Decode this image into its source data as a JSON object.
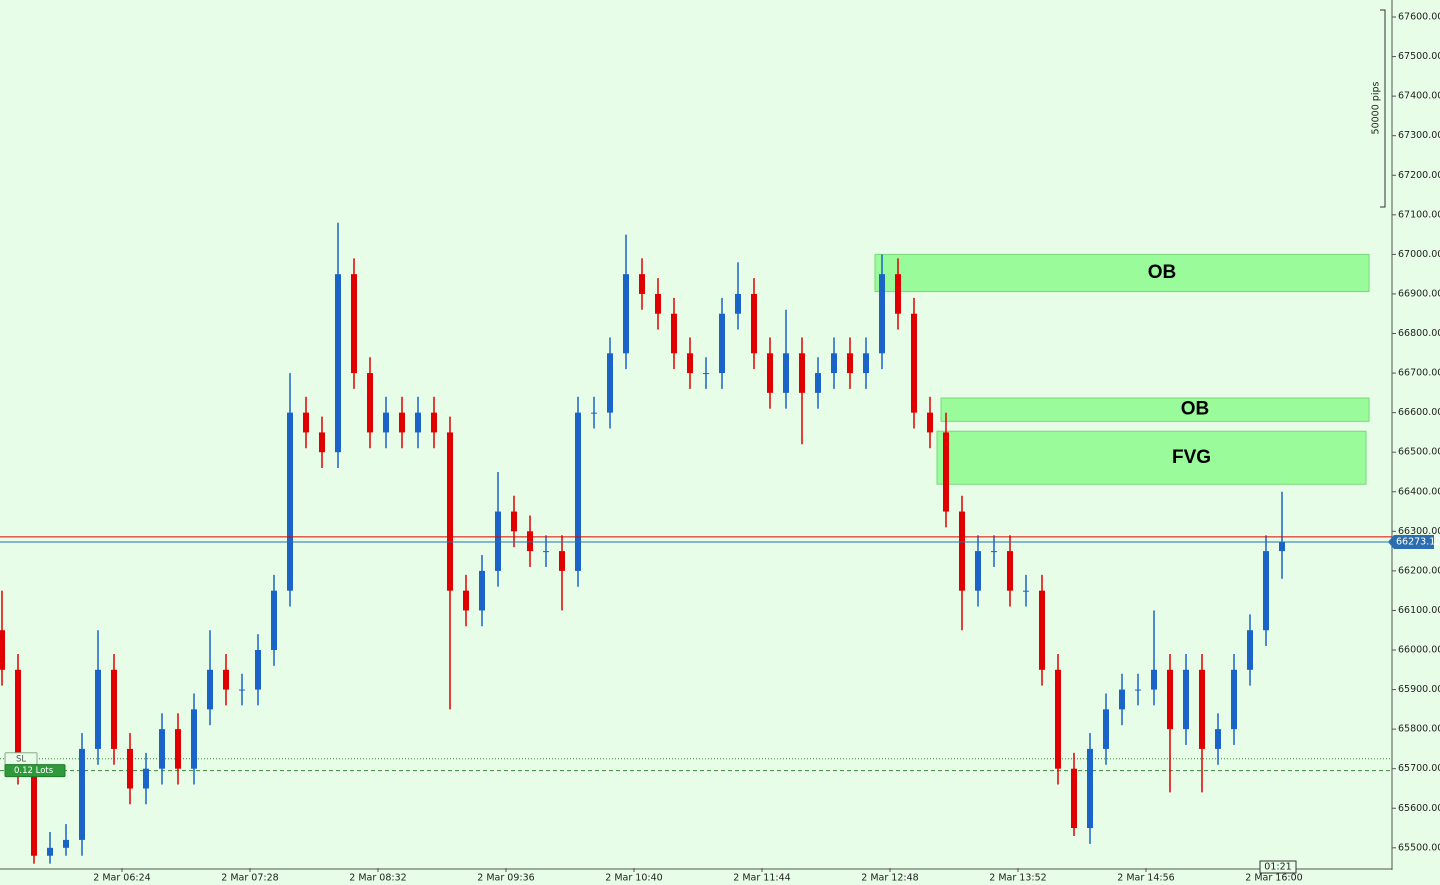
{
  "chart_data": {
    "type": "candlestick",
    "x": [
      324,
      332,
      340,
      348,
      356,
      364,
      372,
      380,
      388,
      396,
      404,
      412,
      420,
      428,
      436,
      444,
      452,
      460,
      468,
      476,
      484,
      492,
      500,
      508,
      516,
      524,
      532,
      540,
      548,
      556,
      564,
      572,
      580,
      588,
      596,
      604,
      612,
      620,
      628,
      636,
      644,
      652,
      660,
      668,
      676,
      684,
      692,
      700,
      708,
      716,
      724,
      732,
      740,
      748,
      756,
      764,
      772,
      780,
      788,
      796,
      804,
      812,
      820,
      828,
      836,
      844,
      852,
      860,
      868,
      876,
      884,
      892,
      900,
      908,
      916,
      924,
      932,
      940,
      948,
      956,
      964
    ],
    "open": [
      66050,
      65950,
      65700,
      65480,
      65500,
      65520,
      65750,
      65950,
      65750,
      65650,
      65700,
      65800,
      65700,
      65850,
      65950,
      65900,
      65900,
      66000,
      66150,
      66600,
      66550,
      66500,
      66950,
      66700,
      66550,
      66600,
      66550,
      66600,
      66550,
      66150,
      66100,
      66200,
      66350,
      66300,
      66250,
      66250,
      66200,
      66600,
      66600,
      66750,
      66950,
      66900,
      66850,
      66750,
      66700,
      66700,
      66850,
      66900,
      66750,
      66650,
      66750,
      66650,
      66700,
      66750,
      66700,
      66750,
      66950,
      66850,
      66600,
      66550,
      66350,
      66150,
      66250,
      66250,
      66150,
      66150,
      65950,
      65700,
      65550,
      65750,
      65850,
      65900,
      65900,
      65950,
      65800,
      65950,
      65750,
      65800,
      65950,
      66050,
      66250
    ],
    "high": [
      66150,
      65990,
      65740,
      65540,
      65560,
      65790,
      66050,
      65990,
      65790,
      65740,
      65840,
      65840,
      65890,
      66050,
      65990,
      65940,
      66040,
      66190,
      66700,
      66640,
      66590,
      67080,
      66990,
      66740,
      66640,
      66640,
      66640,
      66640,
      66590,
      66190,
      66240,
      66450,
      66390,
      66340,
      66290,
      66290,
      66640,
      66640,
      66790,
      67050,
      66990,
      66940,
      66890,
      66790,
      66740,
      66890,
      66980,
      66940,
      66790,
      66860,
      66790,
      66740,
      66790,
      66790,
      66790,
      67000,
      66990,
      66890,
      66640,
      66600,
      66390,
      66290,
      66290,
      66290,
      66190,
      66190,
      65990,
      65740,
      65790,
      65890,
      65940,
      65940,
      66100,
      65990,
      65990,
      65990,
      65840,
      65990,
      66090,
      66290,
      66400
    ],
    "low": [
      65910,
      65660,
      65460,
      65460,
      65480,
      65480,
      65710,
      65710,
      65610,
      65610,
      65660,
      65660,
      65660,
      65810,
      65860,
      65860,
      65860,
      65960,
      66110,
      66510,
      66460,
      66460,
      66660,
      66510,
      66510,
      66510,
      66510,
      66510,
      65850,
      66060,
      66060,
      66160,
      66260,
      66210,
      66210,
      66100,
      66160,
      66560,
      66560,
      66710,
      66860,
      66810,
      66710,
      66660,
      66660,
      66660,
      66810,
      66710,
      66610,
      66610,
      66520,
      66610,
      66660,
      66660,
      66660,
      66710,
      66810,
      66560,
      66510,
      66310,
      66050,
      66110,
      66210,
      66110,
      66110,
      65910,
      65660,
      65530,
      65510,
      65710,
      65810,
      65860,
      65860,
      65640,
      65760,
      65640,
      65710,
      65760,
      65910,
      66010,
      66180
    ],
    "close": [
      65950,
      65700,
      65480,
      65500,
      65520,
      65750,
      65950,
      65750,
      65650,
      65700,
      65800,
      65700,
      65850,
      65950,
      65900,
      65900,
      66000,
      66150,
      66600,
      66550,
      66500,
      66950,
      66700,
      66550,
      66600,
      66550,
      66600,
      66550,
      66150,
      66100,
      66200,
      66350,
      66300,
      66250,
      66250,
      66200,
      66600,
      66600,
      66750,
      66950,
      66900,
      66850,
      66750,
      66700,
      66700,
      66850,
      66900,
      66750,
      66650,
      66750,
      66650,
      66700,
      66750,
      66700,
      66750,
      66950,
      66850,
      66600,
      66550,
      66350,
      66150,
      66250,
      66250,
      66150,
      66150,
      65950,
      65700,
      65550,
      65750,
      65850,
      65900,
      65900,
      65950,
      65800,
      65950,
      65750,
      65800,
      65950,
      66050,
      66250,
      66273.12
    ],
    "up_color": "#1a64c8",
    "down_color": "#e00000",
    "xlim": [
      323,
      1019
    ],
    "xticks": [
      {
        "value": 384,
        "label": "2 Mar 06:24"
      },
      {
        "value": 448,
        "label": "2 Mar 07:28"
      },
      {
        "value": 512,
        "label": "2 Mar 08:32"
      },
      {
        "value": 576,
        "label": "2 Mar 09:36"
      },
      {
        "value": 640,
        "label": "2 Mar 10:40"
      },
      {
        "value": 704,
        "label": "2 Mar 11:44"
      },
      {
        "value": 768,
        "label": "2 Mar 12:48"
      },
      {
        "value": 832,
        "label": "2 Mar 13:52"
      },
      {
        "value": 896,
        "label": "2 Mar 14:56"
      },
      {
        "value": 960,
        "label": "2 Mar 16:00"
      }
    ],
    "ylim": [
      65449,
      67643
    ],
    "yticks": [
      {
        "value": 65500,
        "label": "65500.00"
      },
      {
        "value": 65600,
        "label": "65600.00"
      },
      {
        "value": 65700,
        "label": "65700.00"
      },
      {
        "value": 65800,
        "label": "65800.00"
      },
      {
        "value": 65900,
        "label": "65900.00"
      },
      {
        "value": 66000,
        "label": "66000.00"
      },
      {
        "value": 66100,
        "label": "66100.00"
      },
      {
        "value": 66200,
        "label": "66200.00"
      },
      {
        "value": 66300,
        "label": "66300.00"
      },
      {
        "value": 66400,
        "label": "66400.00"
      },
      {
        "value": 66500,
        "label": "66500.00"
      },
      {
        "value": 66600,
        "label": "66600.00"
      },
      {
        "value": 66700,
        "label": "66700.00"
      },
      {
        "value": 66800,
        "label": "66800.00"
      },
      {
        "value": 66900,
        "label": "66900.00"
      },
      {
        "value": 67000,
        "label": "67000.00"
      },
      {
        "value": 67100,
        "label": "67100.00"
      },
      {
        "value": 67200,
        "label": "67200.00"
      },
      {
        "value": 67300,
        "label": "67300.00"
      },
      {
        "value": 67400,
        "label": "67400.00"
      },
      {
        "value": 67500,
        "label": "67500.00"
      },
      {
        "value": 67600,
        "label": "67600.00"
      }
    ],
    "zones": [
      {
        "label": "OB",
        "x": [
          760.5,
          1007.5
        ],
        "y": [
          66906,
          67000
        ]
      },
      {
        "label": "OB",
        "x": [
          793.5,
          1007.5
        ],
        "y": [
          66578,
          66637
        ]
      },
      {
        "label": "FVG",
        "x": [
          791.5,
          1006
        ],
        "y": [
          66419,
          66553
        ]
      }
    ],
    "price_lines": [
      {
        "y": 66286,
        "color": "#e00000"
      },
      {
        "y": 66273.12,
        "color": "#2a6eb0"
      }
    ],
    "orders": [
      {
        "label": "SL",
        "y": 65725
      },
      {
        "label": "0.12 Lots",
        "y": 65695
      }
    ],
    "scale_label": "50000 pips",
    "countdown": "01:21"
  }
}
